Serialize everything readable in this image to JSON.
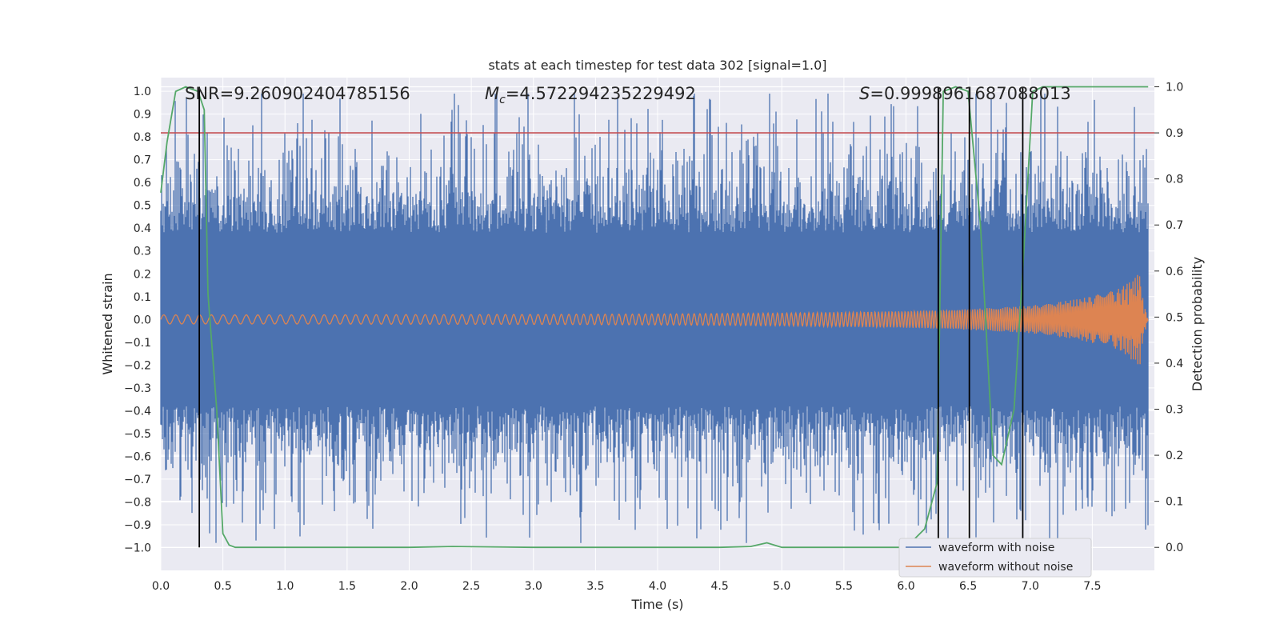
{
  "chart_data": {
    "type": "line",
    "title": "stats at each timestep for test data 302 [signal=1.0]",
    "xlabel": "Time (s)",
    "ylabel_left": "Whitened strain",
    "ylabel_right": "Detection probability",
    "xlim": [
      0.0,
      8.0
    ],
    "ylim_left": [
      -1.1,
      1.06
    ],
    "ylim_right": [
      -0.05,
      1.02
    ],
    "x_ticks": [
      0.0,
      0.5,
      1.0,
      1.5,
      2.0,
      2.5,
      3.0,
      3.5,
      4.0,
      4.5,
      5.0,
      5.5,
      6.0,
      6.5,
      7.0,
      7.5
    ],
    "x_tick_labels": [
      "0.0",
      "0.5",
      "1.0",
      "1.5",
      "2.0",
      "2.5",
      "3.0",
      "3.5",
      "4.0",
      "4.5",
      "5.0",
      "5.5",
      "6.0",
      "6.5",
      "7.0",
      "7.5"
    ],
    "y_left_ticks": [
      1.0,
      0.9,
      0.8,
      0.7,
      0.6,
      0.5,
      0.4,
      0.3,
      0.2,
      0.1,
      0.0,
      -0.1,
      -0.2,
      -0.3,
      -0.4,
      -0.5,
      -0.6,
      -0.7,
      -0.8,
      -0.9,
      -1.0
    ],
    "y_left_tick_labels": [
      "1.0",
      "0.9",
      "0.8",
      "0.7",
      "0.6",
      "0.5",
      "0.4",
      "0.3",
      "0.2",
      "0.1",
      "0.0",
      "−0.1",
      "−0.2",
      "−0.3",
      "−0.4",
      "−0.5",
      "−0.6",
      "−0.7",
      "−0.8",
      "−0.9",
      "−1.0"
    ],
    "y_right_ticks": [
      1.0,
      0.9,
      0.8,
      0.7,
      0.6,
      0.5,
      0.4,
      0.3,
      0.2,
      0.1,
      0.0
    ],
    "y_right_tick_labels": [
      "1.0",
      "0.9",
      "0.8",
      "0.7",
      "0.6",
      "0.5",
      "0.4",
      "0.3",
      "0.2",
      "0.1",
      "0.0"
    ],
    "grid": true,
    "threshold": {
      "axis": "right",
      "value": 0.9,
      "color": "#c44e52"
    },
    "vertical_markers_x": [
      0.31,
      6.26,
      6.51,
      6.94
    ],
    "annotations": {
      "snr": "SNR=9.260902404785156",
      "mc_symbol": "M",
      "mc_sub": "c",
      "mc_value": "=4.572294235229492",
      "s_symbol": "S",
      "s_value": "=0.9998961687088013"
    },
    "series": [
      {
        "name": "waveform with noise",
        "axis": "left",
        "color": "#4c72b0",
        "description": "whitened noisy strain, dense band roughly between -0.6 and 0.6 with spikes to ±0.97",
        "x_range": [
          0.0,
          7.95
        ]
      },
      {
        "name": "waveform without noise",
        "axis": "left",
        "color": "#dd8452",
        "x_range": [
          0.0,
          7.95
        ],
        "amplitude_at_x": [
          [
            0.0,
            0.02
          ],
          [
            1.0,
            0.02
          ],
          [
            2.0,
            0.021
          ],
          [
            3.0,
            0.022
          ],
          [
            4.0,
            0.024
          ],
          [
            5.0,
            0.028
          ],
          [
            6.0,
            0.036
          ],
          [
            6.5,
            0.045
          ],
          [
            7.0,
            0.06
          ],
          [
            7.4,
            0.09
          ],
          [
            7.7,
            0.13
          ],
          [
            7.85,
            0.19
          ],
          [
            7.88,
            0.22
          ],
          [
            7.91,
            0.08
          ],
          [
            7.95,
            0.0
          ]
        ]
      },
      {
        "name": "detection probability",
        "axis": "right",
        "color": "#55a868",
        "x": [
          0.0,
          0.05,
          0.12,
          0.2,
          0.3,
          0.35,
          0.38,
          0.45,
          0.5,
          0.55,
          0.6,
          1.0,
          1.5,
          2.0,
          2.35,
          3.0,
          3.5,
          4.0,
          4.5,
          4.75,
          4.88,
          5.0,
          5.5,
          6.0,
          6.15,
          6.25,
          6.3,
          6.4,
          6.5,
          6.6,
          6.7,
          6.77,
          6.87,
          6.94,
          7.02,
          7.1,
          7.5,
          7.95
        ],
        "y": [
          0.77,
          0.88,
          0.99,
          1.0,
          0.99,
          0.95,
          0.55,
          0.3,
          0.03,
          0.005,
          0.0,
          0.0,
          0.0,
          0.0,
          0.002,
          0.0,
          0.0,
          0.0,
          0.0,
          0.002,
          0.01,
          0.0,
          0.0,
          0.0,
          0.04,
          0.14,
          0.99,
          1.0,
          0.99,
          0.7,
          0.2,
          0.18,
          0.3,
          0.6,
          0.99,
          1.0,
          1.0,
          1.0
        ]
      }
    ],
    "legend": {
      "position": "bottom-right",
      "entries": [
        {
          "label": "waveform with noise",
          "color": "#4c72b0"
        },
        {
          "label": "waveform without noise",
          "color": "#dd8452"
        }
      ]
    }
  }
}
